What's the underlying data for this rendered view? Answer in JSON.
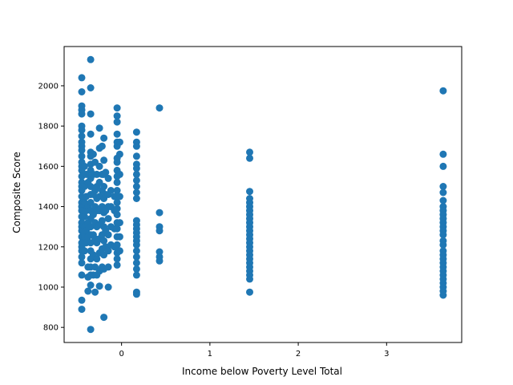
{
  "chart_data": {
    "type": "scatter",
    "title": "",
    "xlabel": "Income below Poverty Level Total",
    "ylabel": "Composite Score",
    "xlim": [
      -0.65,
      3.85
    ],
    "ylim": [
      725,
      2195
    ],
    "xticks": [
      0,
      1,
      2,
      3
    ],
    "yticks": [
      800,
      1000,
      1200,
      1400,
      1600,
      1800,
      2000
    ],
    "grid": false,
    "legend": "none",
    "marker_color": "#1f77b4",
    "series": [
      {
        "values": [
          [
            -0.45,
            2040
          ],
          [
            -0.45,
            1970
          ],
          [
            -0.45,
            1900
          ],
          [
            -0.45,
            1880
          ],
          [
            -0.45,
            1860
          ],
          [
            -0.45,
            1800
          ],
          [
            -0.45,
            1780
          ],
          [
            -0.45,
            1750
          ],
          [
            -0.45,
            1720
          ],
          [
            -0.45,
            1700
          ],
          [
            -0.45,
            1680
          ],
          [
            -0.45,
            1650
          ],
          [
            -0.45,
            1620
          ],
          [
            -0.45,
            1600
          ],
          [
            -0.45,
            1580
          ],
          [
            -0.45,
            1550
          ],
          [
            -0.45,
            1520
          ],
          [
            -0.45,
            1500
          ],
          [
            -0.45,
            1480
          ],
          [
            -0.45,
            1450
          ],
          [
            -0.45,
            1420
          ],
          [
            -0.45,
            1400
          ],
          [
            -0.45,
            1380
          ],
          [
            -0.45,
            1350
          ],
          [
            -0.45,
            1320
          ],
          [
            -0.45,
            1300
          ],
          [
            -0.45,
            1280
          ],
          [
            -0.45,
            1250
          ],
          [
            -0.45,
            1220
          ],
          [
            -0.45,
            1200
          ],
          [
            -0.45,
            1180
          ],
          [
            -0.45,
            1150
          ],
          [
            -0.45,
            1120
          ],
          [
            -0.45,
            1060
          ],
          [
            -0.45,
            935
          ],
          [
            -0.45,
            890
          ],
          [
            -0.42,
            1600
          ],
          [
            -0.42,
            1500
          ],
          [
            -0.42,
            1420
          ],
          [
            -0.42,
            1350
          ],
          [
            -0.42,
            1300
          ],
          [
            -0.42,
            1250
          ],
          [
            -0.42,
            1180
          ],
          [
            -0.4,
            1560
          ],
          [
            -0.4,
            1450
          ],
          [
            -0.4,
            1380
          ],
          [
            -0.4,
            1280
          ],
          [
            -0.4,
            1220
          ],
          [
            -0.38,
            1520
          ],
          [
            -0.38,
            1400
          ],
          [
            -0.38,
            1320
          ],
          [
            -0.38,
            1250
          ],
          [
            -0.38,
            1100
          ],
          [
            -0.38,
            1050
          ],
          [
            -0.38,
            980
          ],
          [
            -0.35,
            2130
          ],
          [
            -0.35,
            1990
          ],
          [
            -0.35,
            1860
          ],
          [
            -0.35,
            1760
          ],
          [
            -0.35,
            1670
          ],
          [
            -0.35,
            1650
          ],
          [
            -0.35,
            1610
          ],
          [
            -0.35,
            1580
          ],
          [
            -0.35,
            1540
          ],
          [
            -0.35,
            1500
          ],
          [
            -0.35,
            1460
          ],
          [
            -0.35,
            1420
          ],
          [
            -0.35,
            1380
          ],
          [
            -0.35,
            1340
          ],
          [
            -0.35,
            1300
          ],
          [
            -0.35,
            1260
          ],
          [
            -0.35,
            1220
          ],
          [
            -0.35,
            1180
          ],
          [
            -0.35,
            1140
          ],
          [
            -0.35,
            1100
          ],
          [
            -0.35,
            1060
          ],
          [
            -0.35,
            1010
          ],
          [
            -0.35,
            790
          ],
          [
            -0.32,
            1660
          ],
          [
            -0.32,
            1560
          ],
          [
            -0.32,
            1460
          ],
          [
            -0.32,
            1360
          ],
          [
            -0.32,
            1260
          ],
          [
            -0.32,
            1160
          ],
          [
            -0.32,
            1060
          ],
          [
            -0.3,
            1620
          ],
          [
            -0.3,
            1480
          ],
          [
            -0.3,
            1400
          ],
          [
            -0.3,
            1320
          ],
          [
            -0.3,
            1240
          ],
          [
            -0.3,
            1100
          ],
          [
            -0.3,
            975
          ],
          [
            -0.28,
            1560
          ],
          [
            -0.28,
            1500
          ],
          [
            -0.28,
            1440
          ],
          [
            -0.28,
            1380
          ],
          [
            -0.28,
            1300
          ],
          [
            -0.28,
            1220
          ],
          [
            -0.28,
            1140
          ],
          [
            -0.28,
            1060
          ],
          [
            -0.25,
            1790
          ],
          [
            -0.25,
            1690
          ],
          [
            -0.25,
            1600
          ],
          [
            -0.25,
            1520
          ],
          [
            -0.25,
            1450
          ],
          [
            -0.25,
            1380
          ],
          [
            -0.25,
            1310
          ],
          [
            -0.25,
            1240
          ],
          [
            -0.25,
            1170
          ],
          [
            -0.25,
            1080
          ],
          [
            -0.25,
            1005
          ],
          [
            -0.22,
            1700
          ],
          [
            -0.22,
            1560
          ],
          [
            -0.22,
            1480
          ],
          [
            -0.22,
            1400
          ],
          [
            -0.22,
            1330
          ],
          [
            -0.22,
            1260
          ],
          [
            -0.22,
            1190
          ],
          [
            -0.22,
            1100
          ],
          [
            -0.2,
            1740
          ],
          [
            -0.2,
            1630
          ],
          [
            -0.2,
            1560
          ],
          [
            -0.2,
            1500
          ],
          [
            -0.2,
            1440
          ],
          [
            -0.2,
            1370
          ],
          [
            -0.2,
            1300
          ],
          [
            -0.2,
            1230
          ],
          [
            -0.2,
            1160
          ],
          [
            -0.2,
            1090
          ],
          [
            -0.2,
            850
          ],
          [
            -0.18,
            1570
          ],
          [
            -0.18,
            1460
          ],
          [
            -0.18,
            1380
          ],
          [
            -0.18,
            1280
          ],
          [
            -0.18,
            1200
          ],
          [
            -0.15,
            1540
          ],
          [
            -0.15,
            1460
          ],
          [
            -0.15,
            1400
          ],
          [
            -0.15,
            1340
          ],
          [
            -0.15,
            1260
          ],
          [
            -0.15,
            1180
          ],
          [
            -0.15,
            1100
          ],
          [
            -0.15,
            1000
          ],
          [
            -0.12,
            1480
          ],
          [
            -0.12,
            1400
          ],
          [
            -0.12,
            1300
          ],
          [
            -0.12,
            1210
          ],
          [
            -0.08,
            1450
          ],
          [
            -0.08,
            1380
          ],
          [
            -0.08,
            1290
          ],
          [
            -0.08,
            1200
          ],
          [
            -0.05,
            1890
          ],
          [
            -0.05,
            1850
          ],
          [
            -0.05,
            1820
          ],
          [
            -0.05,
            1760
          ],
          [
            -0.05,
            1720
          ],
          [
            -0.05,
            1700
          ],
          [
            -0.05,
            1640
          ],
          [
            -0.05,
            1620
          ],
          [
            -0.05,
            1580
          ],
          [
            -0.05,
            1550
          ],
          [
            -0.05,
            1520
          ],
          [
            -0.05,
            1480
          ],
          [
            -0.05,
            1450
          ],
          [
            -0.05,
            1420
          ],
          [
            -0.05,
            1390
          ],
          [
            -0.05,
            1360
          ],
          [
            -0.05,
            1320
          ],
          [
            -0.05,
            1290
          ],
          [
            -0.05,
            1250
          ],
          [
            -0.05,
            1210
          ],
          [
            -0.05,
            1170
          ],
          [
            -0.05,
            1140
          ],
          [
            -0.05,
            1110
          ],
          [
            -0.02,
            1720
          ],
          [
            -0.02,
            1660
          ],
          [
            -0.02,
            1560
          ],
          [
            -0.02,
            1450
          ],
          [
            -0.02,
            1320
          ],
          [
            -0.02,
            1250
          ],
          [
            -0.02,
            1180
          ],
          [
            0.17,
            1770
          ],
          [
            0.17,
            1720
          ],
          [
            0.17,
            1700
          ],
          [
            0.17,
            1650
          ],
          [
            0.17,
            1610
          ],
          [
            0.17,
            1590
          ],
          [
            0.17,
            1560
          ],
          [
            0.17,
            1530
          ],
          [
            0.17,
            1500
          ],
          [
            0.17,
            1470
          ],
          [
            0.17,
            1440
          ],
          [
            0.17,
            1330
          ],
          [
            0.17,
            1310
          ],
          [
            0.17,
            1290
          ],
          [
            0.17,
            1270
          ],
          [
            0.17,
            1250
          ],
          [
            0.17,
            1230
          ],
          [
            0.17,
            1210
          ],
          [
            0.17,
            1180
          ],
          [
            0.17,
            1150
          ],
          [
            0.17,
            1120
          ],
          [
            0.17,
            1090
          ],
          [
            0.17,
            1060
          ],
          [
            0.17,
            975
          ],
          [
            0.17,
            965
          ],
          [
            0.43,
            1890
          ],
          [
            0.43,
            1370
          ],
          [
            0.43,
            1300
          ],
          [
            0.43,
            1280
          ],
          [
            0.43,
            1175
          ],
          [
            0.43,
            1150
          ],
          [
            0.43,
            1130
          ],
          [
            1.45,
            1670
          ],
          [
            1.45,
            1640
          ],
          [
            1.45,
            1475
          ],
          [
            1.45,
            1440
          ],
          [
            1.45,
            1420
          ],
          [
            1.45,
            1400
          ],
          [
            1.45,
            1380
          ],
          [
            1.45,
            1360
          ],
          [
            1.45,
            1340
          ],
          [
            1.45,
            1320
          ],
          [
            1.45,
            1300
          ],
          [
            1.45,
            1280
          ],
          [
            1.45,
            1260
          ],
          [
            1.45,
            1240
          ],
          [
            1.45,
            1220
          ],
          [
            1.45,
            1200
          ],
          [
            1.45,
            1180
          ],
          [
            1.45,
            1160
          ],
          [
            1.45,
            1140
          ],
          [
            1.45,
            1120
          ],
          [
            1.45,
            1100
          ],
          [
            1.45,
            1080
          ],
          [
            1.45,
            1060
          ],
          [
            1.45,
            1040
          ],
          [
            1.45,
            975
          ],
          [
            3.64,
            1975
          ],
          [
            3.64,
            1660
          ],
          [
            3.64,
            1600
          ],
          [
            3.64,
            1500
          ],
          [
            3.64,
            1470
          ],
          [
            3.64,
            1430
          ],
          [
            3.64,
            1400
          ],
          [
            3.64,
            1380
          ],
          [
            3.64,
            1360
          ],
          [
            3.64,
            1340
          ],
          [
            3.64,
            1320
          ],
          [
            3.64,
            1300
          ],
          [
            3.64,
            1280
          ],
          [
            3.64,
            1260
          ],
          [
            3.64,
            1230
          ],
          [
            3.64,
            1210
          ],
          [
            3.64,
            1180
          ],
          [
            3.64,
            1160
          ],
          [
            3.64,
            1140
          ],
          [
            3.64,
            1120
          ],
          [
            3.64,
            1100
          ],
          [
            3.64,
            1080
          ],
          [
            3.64,
            1060
          ],
          [
            3.64,
            1040
          ],
          [
            3.64,
            1020
          ],
          [
            3.64,
            1000
          ],
          [
            3.64,
            980
          ],
          [
            3.64,
            960
          ]
        ]
      }
    ]
  }
}
